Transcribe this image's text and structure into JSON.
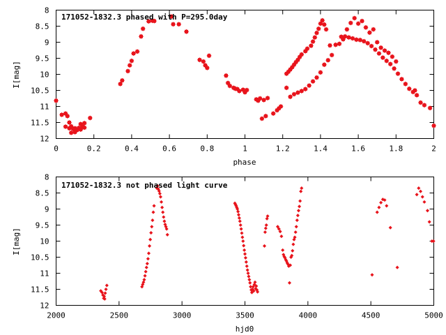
{
  "chart_data": [
    {
      "type": "scatter",
      "title": "171052-1832.3 phased with P=295.0day",
      "xlabel": "phase",
      "ylabel": "I[mag]",
      "xlim": [
        0,
        2
      ],
      "ylim": [
        8,
        12
      ],
      "y_inverted": true,
      "xticks": [
        0,
        0.2,
        0.4,
        0.6,
        0.8,
        1,
        1.2,
        1.4,
        1.6,
        1.8,
        2
      ],
      "xtick_labels": [
        "0",
        "0.2",
        "0.4",
        "0.6",
        "0.8",
        "1",
        "1.2",
        "1.4",
        "1.6",
        "1.8",
        "2"
      ],
      "yticks": [
        8,
        8.5,
        9,
        9.5,
        10,
        10.5,
        11,
        11.5,
        12
      ],
      "ytick_labels": [
        "8",
        "8.5",
        "9",
        "9.5",
        "10",
        "10.5",
        "11",
        "11.5",
        "12"
      ],
      "marker_color": "#e8141c",
      "grid": false,
      "series": [
        {
          "x": [
            0.0,
            0.03,
            0.05,
            0.05,
            0.06,
            0.07,
            0.07,
            0.08,
            0.08,
            0.09,
            0.1,
            0.1,
            0.11,
            0.12,
            0.13,
            0.13,
            0.14,
            0.15,
            0.15,
            0.18,
            0.34,
            0.35,
            0.38,
            0.39,
            0.4,
            0.41,
            0.43,
            0.45,
            0.46,
            0.49,
            0.51,
            0.52,
            0.61,
            0.62,
            0.65,
            0.69,
            0.76,
            0.78,
            0.79,
            0.8,
            0.81,
            0.9,
            0.91,
            0.92,
            0.94,
            0.95,
            0.96,
            0.97,
            0.99,
            1.0,
            1.01,
            1.06,
            1.07,
            1.08,
            1.09,
            1.1,
            1.11,
            1.12,
            1.15,
            1.17,
            1.18,
            1.19,
            1.22,
            1.23,
            1.24,
            1.25,
            1.26,
            1.27,
            1.28,
            1.29,
            1.3,
            1.32,
            1.33,
            1.35,
            1.36,
            1.37,
            1.38,
            1.39,
            1.4,
            1.41,
            1.42,
            1.43,
            1.45,
            1.48,
            1.51,
            1.53,
            1.55,
            1.57,
            1.59,
            1.61,
            1.63,
            1.65,
            1.67,
            1.69,
            1.71,
            1.73,
            1.75,
            1.77,
            1.79,
            1.81,
            1.83,
            1.85,
            1.87,
            1.89,
            1.9,
            1.91,
            1.93,
            1.95,
            1.98,
            2.0,
            1.22,
            1.24,
            1.26,
            1.28,
            1.3,
            1.32,
            1.34,
            1.36,
            1.38,
            1.4,
            1.42,
            1.44,
            1.46,
            1.5,
            1.52,
            1.54,
            1.56,
            1.58,
            1.6,
            1.62,
            1.64,
            1.66,
            1.68,
            1.7,
            1.72,
            1.74,
            1.76,
            1.78,
            1.8
          ],
          "y": [
            10.82,
            11.26,
            11.22,
            11.63,
            11.3,
            11.5,
            11.68,
            11.62,
            11.82,
            11.7,
            11.68,
            11.8,
            11.74,
            11.67,
            11.72,
            11.55,
            11.63,
            11.52,
            11.66,
            11.36,
            10.3,
            10.19,
            9.9,
            9.72,
            9.58,
            9.35,
            9.29,
            8.82,
            8.58,
            8.35,
            8.33,
            8.34,
            8.2,
            8.44,
            8.44,
            8.67,
            9.55,
            9.6,
            9.72,
            9.8,
            9.42,
            10.04,
            10.27,
            10.36,
            10.42,
            10.45,
            10.46,
            10.52,
            10.48,
            10.56,
            10.49,
            10.78,
            10.82,
            10.75,
            11.38,
            10.8,
            11.3,
            10.74,
            11.22,
            11.12,
            11.06,
            11.0,
            9.98,
            9.92,
            9.85,
            9.78,
            9.7,
            9.62,
            9.55,
            9.46,
            9.38,
            9.28,
            9.2,
            9.11,
            8.98,
            8.85,
            8.71,
            8.58,
            8.42,
            8.32,
            8.45,
            8.6,
            9.1,
            9.08,
            8.83,
            8.82,
            8.85,
            8.88,
            8.92,
            8.93,
            8.97,
            9.03,
            9.12,
            9.23,
            9.35,
            9.48,
            9.58,
            9.68,
            9.82,
            9.98,
            10.15,
            10.3,
            10.45,
            10.55,
            10.5,
            10.65,
            10.88,
            10.96,
            11.05,
            11.6,
            10.42,
            10.7,
            10.62,
            10.57,
            10.52,
            10.46,
            10.35,
            10.22,
            10.1,
            9.94,
            9.7,
            9.56,
            9.4,
            9.05,
            8.91,
            8.6,
            8.4,
            8.25,
            8.42,
            8.34,
            8.54,
            8.7,
            8.6,
            9.0,
            9.17,
            9.26,
            9.33,
            9.45,
            9.6
          ]
        }
      ]
    },
    {
      "type": "scatter",
      "title": "171052-1832.3 not phased light curve",
      "xlabel": "hjd0",
      "ylabel": "I[mag]",
      "xlim": [
        2000,
        5000
      ],
      "ylim": [
        8,
        12
      ],
      "y_inverted": true,
      "xticks": [
        2000,
        2500,
        3000,
        3500,
        4000,
        4500,
        5000
      ],
      "xtick_labels": [
        "2000",
        "2500",
        "3000",
        "3500",
        "4000",
        "4500",
        "5000"
      ],
      "yticks": [
        8,
        8.5,
        9,
        9.5,
        10,
        10.5,
        11,
        11.5,
        12
      ],
      "ytick_labels": [
        "8",
        "8.5",
        "9",
        "9.5",
        "10",
        "10.5",
        "11",
        "11.5",
        "12"
      ],
      "marker_color": "#e8141c",
      "grid": false,
      "series": [
        {
          "x": [
            2355,
            2365,
            2372,
            2378,
            2382,
            2386,
            2390,
            2396,
            2403,
            2682,
            2688,
            2694,
            2700,
            2706,
            2712,
            2718,
            2724,
            2730,
            2736,
            2742,
            2748,
            2754,
            2760,
            2766,
            2772,
            2778,
            2800,
            2806,
            2812,
            2818,
            2824,
            2830,
            2836,
            2842,
            2848,
            2854,
            2860,
            2866,
            2872,
            2878,
            2884,
            3420,
            3425,
            3430,
            3435,
            3440,
            3445,
            3450,
            3455,
            3460,
            3465,
            3470,
            3475,
            3480,
            3485,
            3490,
            3495,
            3500,
            3505,
            3510,
            3515,
            3520,
            3525,
            3530,
            3535,
            3540,
            3545,
            3550,
            3555,
            3560,
            3565,
            3570,
            3575,
            3580,
            3585,
            3590,
            3595,
            3600,
            3655,
            3660,
            3665,
            3670,
            3675,
            3680,
            3760,
            3770,
            3780,
            3790,
            3800,
            3806,
            3812,
            3818,
            3824,
            3830,
            3836,
            3842,
            3848,
            3854,
            3860,
            3866,
            3872,
            3878,
            3884,
            3890,
            3896,
            3902,
            3908,
            3914,
            3920,
            3926,
            3932,
            3938,
            3944,
            3950,
            4510,
            4550,
            4565,
            4580,
            4595,
            4610,
            4625,
            4655,
            4710,
            4865,
            4880,
            4895,
            4910,
            4925,
            4950,
            4965,
            4985,
            4998
          ],
          "y": [
            11.55,
            11.6,
            11.68,
            11.78,
            11.72,
            11.8,
            11.62,
            11.5,
            11.38,
            11.42,
            11.35,
            11.28,
            11.2,
            11.08,
            10.95,
            10.82,
            10.7,
            10.55,
            10.38,
            10.15,
            9.95,
            9.74,
            9.55,
            9.35,
            9.1,
            8.9,
            8.35,
            8.28,
            8.38,
            8.44,
            8.52,
            8.62,
            8.78,
            8.95,
            9.1,
            9.25,
            9.38,
            9.48,
            9.55,
            9.62,
            9.8,
            8.82,
            8.86,
            8.9,
            8.95,
            9.0,
            9.08,
            9.18,
            9.28,
            9.38,
            9.5,
            9.62,
            9.75,
            9.88,
            10.0,
            10.14,
            10.28,
            10.4,
            10.52,
            10.65,
            10.78,
            10.9,
            11.0,
            11.1,
            11.2,
            11.3,
            11.42,
            11.52,
            11.6,
            11.5,
            11.42,
            11.55,
            11.35,
            11.28,
            11.48,
            11.4,
            11.52,
            11.58,
            10.15,
            9.72,
            9.6,
            9.5,
            9.3,
            9.22,
            9.55,
            9.62,
            9.7,
            9.85,
            10.28,
            10.42,
            10.48,
            10.52,
            10.58,
            10.62,
            10.68,
            10.72,
            10.78,
            11.3,
            10.75,
            10.5,
            10.45,
            10.3,
            10.1,
            9.95,
            9.88,
            9.72,
            9.55,
            9.35,
            9.2,
            9.05,
            8.92,
            8.75,
            8.45,
            8.35,
            11.05,
            9.1,
            8.95,
            8.8,
            8.7,
            8.72,
            8.9,
            9.58,
            10.82,
            8.55,
            8.35,
            8.45,
            8.62,
            8.78,
            9.05,
            9.4,
            10.0,
            10.0
          ]
        }
      ]
    }
  ]
}
